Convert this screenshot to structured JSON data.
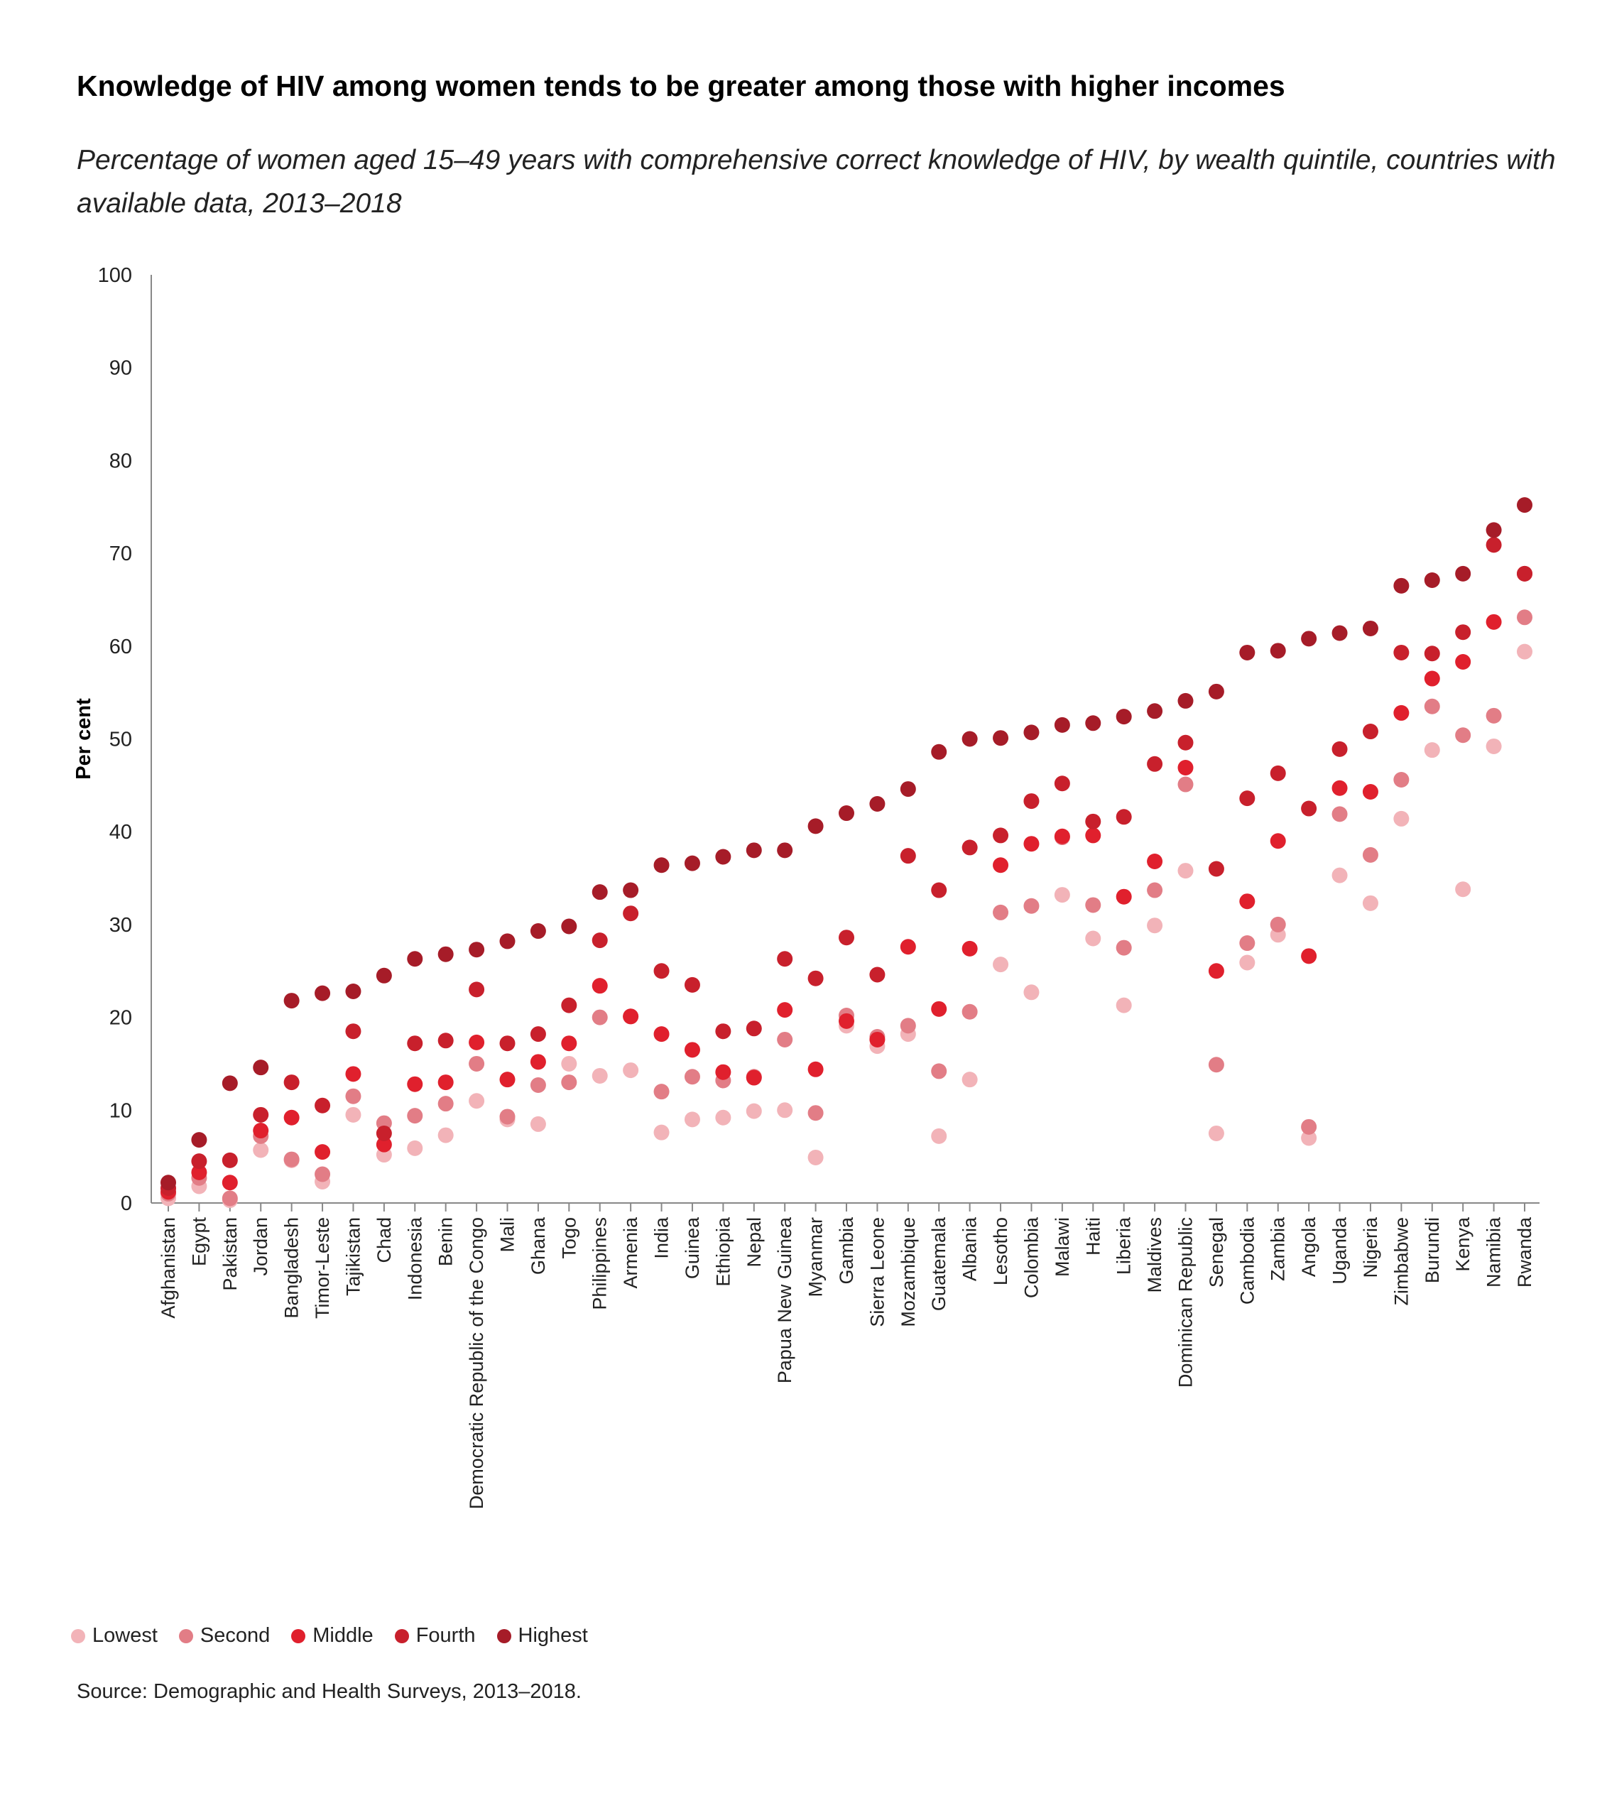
{
  "title": "Knowledge of HIV among women tends to be greater among those with higher incomes",
  "subtitle": "Percentage of women aged 15–49 years with comprehensive correct knowledge of HIV, by wealth quintile, countries with available data, 2013–2018",
  "source": "Source: Demographic and Health Surveys, 2013–2018.",
  "chart_data": {
    "type": "scatter",
    "title": "Knowledge of HIV among women tends to be greater among those with higher incomes",
    "ylabel": "Per cent",
    "xlabel": "",
    "ylim": [
      0,
      100
    ],
    "yticks": [
      0,
      10,
      20,
      30,
      40,
      50,
      60,
      70,
      80,
      90,
      100
    ],
    "grid": false,
    "legend_position": "bottom-left",
    "categories": [
      "Afghanistan",
      "Egypt",
      "Pakistan",
      "Jordan",
      "Bangladesh",
      "Timor-Leste",
      "Tajikistan",
      "Chad",
      "Indonesia",
      "Benin",
      "Democratic Republic of the Congo",
      "Mali",
      "Ghana",
      "Togo",
      "Philippines",
      "Armenia",
      "India",
      "Guinea",
      "Ethiopia",
      "Nepal",
      "Papua New Guinea",
      "Myanmar",
      "Gambia",
      "Sierra Leone",
      "Mozambique",
      "Guatemala",
      "Albania",
      "Lesotho",
      "Colombia",
      "Malawi",
      "Haiti",
      "Liberia",
      "Maldives",
      "Dominican Republic",
      "Senegal",
      "Cambodia",
      "Zambia",
      "Angola",
      "Uganda",
      "Nigeria",
      "Zimbabwe",
      "Burundi",
      "Kenya",
      "Namibia",
      "Rwanda"
    ],
    "series": [
      {
        "name": "Lowest",
        "color": "#f2b3b8",
        "values": [
          0.5,
          1.8,
          0.3,
          5.7,
          4.6,
          2.3,
          9.5,
          5.2,
          5.9,
          7.3,
          11.0,
          9.0,
          8.5,
          15.0,
          13.7,
          14.3,
          7.6,
          9.0,
          9.2,
          9.9,
          10.0,
          4.9,
          19.1,
          16.9,
          18.2,
          7.2,
          13.3,
          25.7,
          22.7,
          33.2,
          28.5,
          21.3,
          29.9,
          35.8,
          7.5,
          25.9,
          28.9,
          7.0,
          35.3,
          32.3,
          41.4,
          48.8,
          33.8,
          49.2,
          59.4
        ]
      },
      {
        "name": "Second",
        "color": "#e27d86",
        "values": [
          1.0,
          2.7,
          0.5,
          7.2,
          4.7,
          3.1,
          11.5,
          8.6,
          9.4,
          10.7,
          15.0,
          9.3,
          12.7,
          13.0,
          20.0,
          20.1,
          12.0,
          13.6,
          13.2,
          13.6,
          17.6,
          9.7,
          20.2,
          17.9,
          19.1,
          14.2,
          20.6,
          31.3,
          32.0,
          39.4,
          32.1,
          27.5,
          33.7,
          45.1,
          14.9,
          28.0,
          30.0,
          8.2,
          41.9,
          37.5,
          45.6,
          53.5,
          50.4,
          52.5,
          63.1
        ]
      },
      {
        "name": "Middle",
        "color": "#e0202d",
        "values": [
          1.2,
          3.3,
          2.2,
          7.8,
          9.2,
          5.5,
          13.9,
          6.3,
          12.8,
          13.0,
          17.3,
          13.3,
          15.2,
          17.2,
          23.4,
          20.1,
          18.2,
          16.5,
          14.1,
          13.5,
          20.8,
          14.4,
          19.6,
          17.6,
          27.6,
          20.9,
          27.4,
          36.4,
          38.7,
          39.5,
          39.6,
          33.0,
          36.8,
          46.9,
          25.0,
          32.5,
          39.0,
          26.6,
          44.7,
          44.3,
          52.8,
          56.5,
          58.3,
          62.6,
          67.8
        ]
      },
      {
        "name": "Fourth",
        "color": "#c8202c",
        "values": [
          1.6,
          4.5,
          4.6,
          9.5,
          13.0,
          10.5,
          18.5,
          7.5,
          17.2,
          17.5,
          23.0,
          17.2,
          18.2,
          21.3,
          28.3,
          31.2,
          25.0,
          23.5,
          18.5,
          18.8,
          26.3,
          24.2,
          28.6,
          24.6,
          37.4,
          33.7,
          38.3,
          39.6,
          43.3,
          45.2,
          41.1,
          41.6,
          47.3,
          49.6,
          36.0,
          43.6,
          46.3,
          42.5,
          48.9,
          50.8,
          59.3,
          59.2,
          61.5,
          70.9,
          67.8
        ]
      },
      {
        "name": "Highest",
        "color": "#a61c28",
        "values": [
          2.2,
          6.8,
          12.9,
          14.6,
          21.8,
          22.6,
          22.8,
          24.5,
          26.3,
          26.8,
          27.3,
          28.2,
          29.3,
          29.8,
          33.5,
          33.7,
          36.4,
          36.6,
          37.3,
          38.0,
          38.0,
          40.6,
          42.0,
          43.0,
          44.6,
          48.6,
          50.0,
          50.1,
          50.7,
          51.5,
          51.7,
          52.4,
          53.0,
          54.1,
          55.1,
          59.3,
          59.5,
          60.8,
          61.4,
          61.9,
          66.5,
          67.1,
          67.8,
          72.5,
          75.2
        ]
      }
    ]
  }
}
